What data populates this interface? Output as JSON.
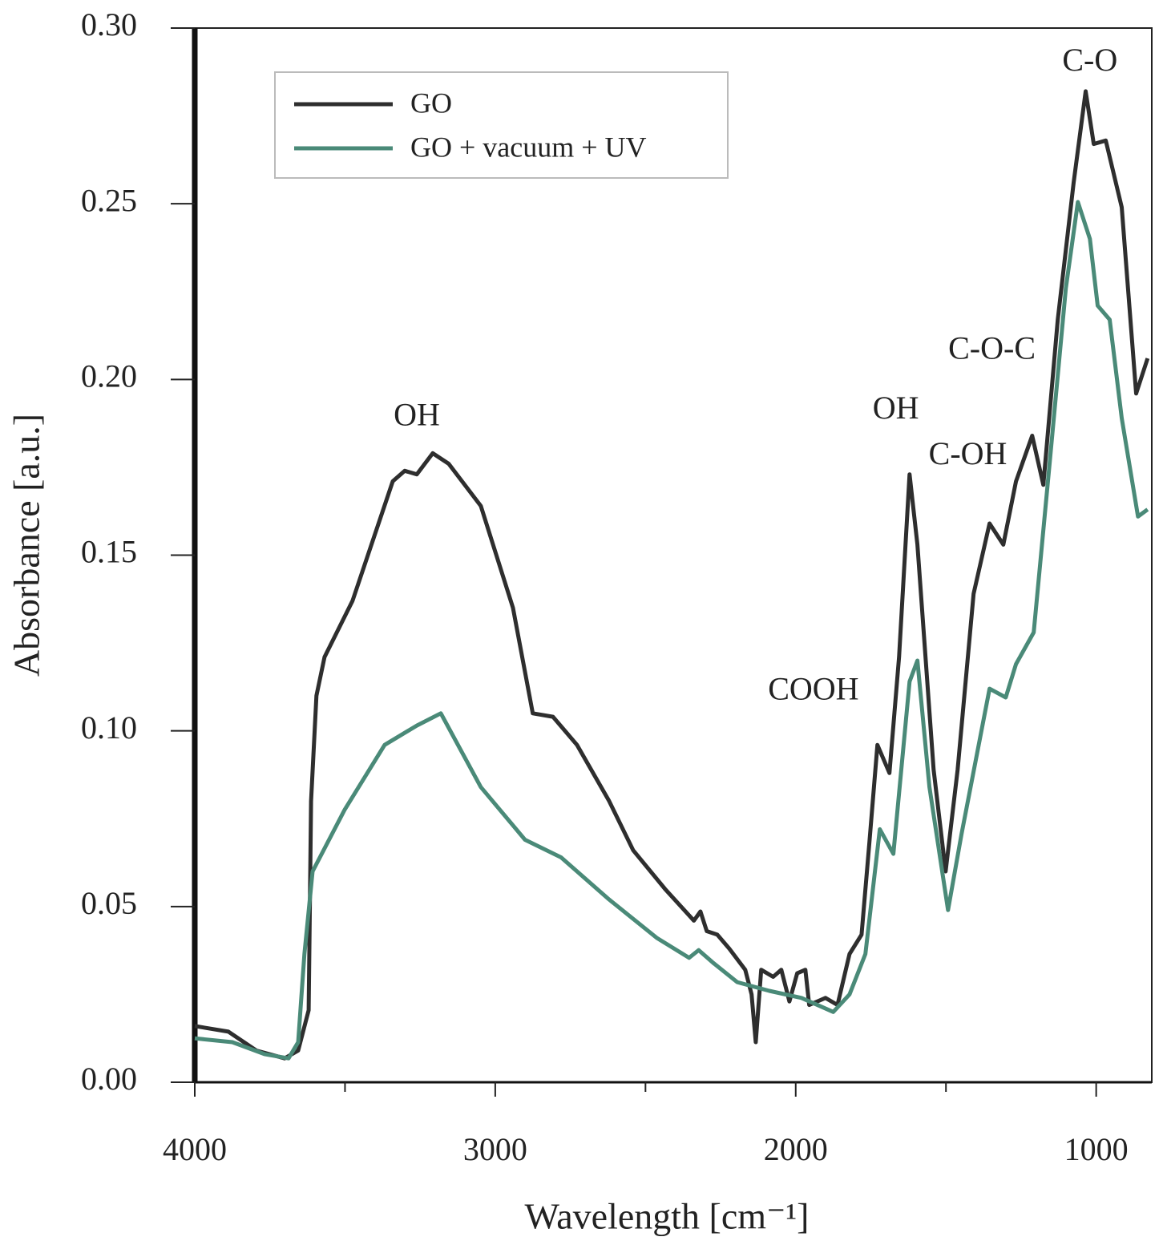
{
  "chart_data": {
    "type": "line",
    "xlabel": "Wavelength [cm⁻¹]",
    "ylabel": "Absorbance [a.u.]",
    "xlim": [
      4000,
      815
    ],
    "xticks": [
      4000,
      3000,
      2000,
      1000
    ],
    "xminor_ticks": [
      3500,
      2500,
      1500
    ],
    "ylim": [
      0,
      0.3
    ],
    "yticks": [
      {
        "value": 0,
        "label": "0.00"
      },
      {
        "value": 0.05,
        "label": "0.05"
      },
      {
        "value": 0.1,
        "label": "0.10"
      },
      {
        "value": 0.15,
        "label": "0.15"
      },
      {
        "value": 0.2,
        "label": "0.20"
      },
      {
        "value": 0.25,
        "label": "0.25"
      },
      {
        "value": 0.3,
        "label": "0.30"
      }
    ],
    "legend": "upper left",
    "series": [
      {
        "name": "GO",
        "color": "#2e2e2e",
        "x": [
          4000,
          3888,
          3795,
          3701,
          3656,
          3621,
          3613,
          3595,
          3568,
          3475,
          3341,
          3301,
          3261,
          3208,
          3155,
          3048,
          2941,
          2875,
          2808,
          2728,
          2621,
          2541,
          2435,
          2339,
          2317,
          2296,
          2261,
          2221,
          2168,
          2147,
          2133,
          2115,
          2075,
          2048,
          2021,
          1995,
          1968,
          1955,
          1901,
          1861,
          1821,
          1781,
          1755,
          1728,
          1688,
          1656,
          1621,
          1595,
          1541,
          1501,
          1461,
          1408,
          1355,
          1309,
          1267,
          1213,
          1176,
          1128,
          1075,
          1035,
          1008,
          968,
          915,
          867,
          829
        ],
        "values": [
          0.016,
          0.0144,
          0.009,
          0.0068,
          0.009,
          0.0205,
          0.08,
          0.11,
          0.121,
          0.137,
          0.171,
          0.174,
          0.173,
          0.179,
          0.176,
          0.164,
          0.135,
          0.105,
          0.104,
          0.096,
          0.08,
          0.066,
          0.055,
          0.046,
          0.0486,
          0.043,
          0.042,
          0.038,
          0.032,
          0.025,
          0.0114,
          0.032,
          0.03,
          0.032,
          0.023,
          0.031,
          0.032,
          0.022,
          0.024,
          0.022,
          0.0365,
          0.042,
          0.068,
          0.096,
          0.088,
          0.121,
          0.173,
          0.153,
          0.089,
          0.06,
          0.089,
          0.139,
          0.159,
          0.153,
          0.171,
          0.184,
          0.17,
          0.217,
          0.256,
          0.282,
          0.267,
          0.268,
          0.249,
          0.196,
          0.206
        ]
      },
      {
        "name": "GO + vacuum + UV",
        "color": "#4a8a78",
        "x": [
          4000,
          3875,
          3768,
          3688,
          3656,
          3635,
          3608,
          3501,
          3368,
          3261,
          3181,
          3048,
          2901,
          2781,
          2621,
          2461,
          2355,
          2323,
          2275,
          2195,
          2088,
          1981,
          1875,
          1821,
          1768,
          1720,
          1675,
          1621,
          1595,
          1555,
          1493,
          1448,
          1355,
          1301,
          1267,
          1208,
          1155,
          1101,
          1061,
          1021,
          995,
          955,
          915,
          861,
          829
        ],
        "values": [
          0.0125,
          0.0114,
          0.008,
          0.0068,
          0.0114,
          0.0365,
          0.06,
          0.0776,
          0.096,
          0.1015,
          0.105,
          0.084,
          0.069,
          0.064,
          0.052,
          0.041,
          0.0354,
          0.0376,
          0.034,
          0.0285,
          0.026,
          0.024,
          0.02,
          0.025,
          0.0365,
          0.072,
          0.065,
          0.114,
          0.12,
          0.084,
          0.049,
          0.0707,
          0.112,
          0.1095,
          0.119,
          0.128,
          0.176,
          0.226,
          0.2505,
          0.24,
          0.221,
          0.217,
          0.189,
          0.161,
          0.163
        ]
      }
    ],
    "annotations": [
      {
        "text": "OH",
        "x": 3261,
        "y": 0.189
      },
      {
        "text": "COOH",
        "x": 1941,
        "y": 0.111
      },
      {
        "text": "OH",
        "x": 1667,
        "y": 0.191
      },
      {
        "text": "C-OH",
        "x": 1427,
        "y": 0.178
      },
      {
        "text": "C-O-C",
        "x": 1347,
        "y": 0.208
      },
      {
        "text": "C-O",
        "x": 1021,
        "y": 0.29
      }
    ]
  }
}
